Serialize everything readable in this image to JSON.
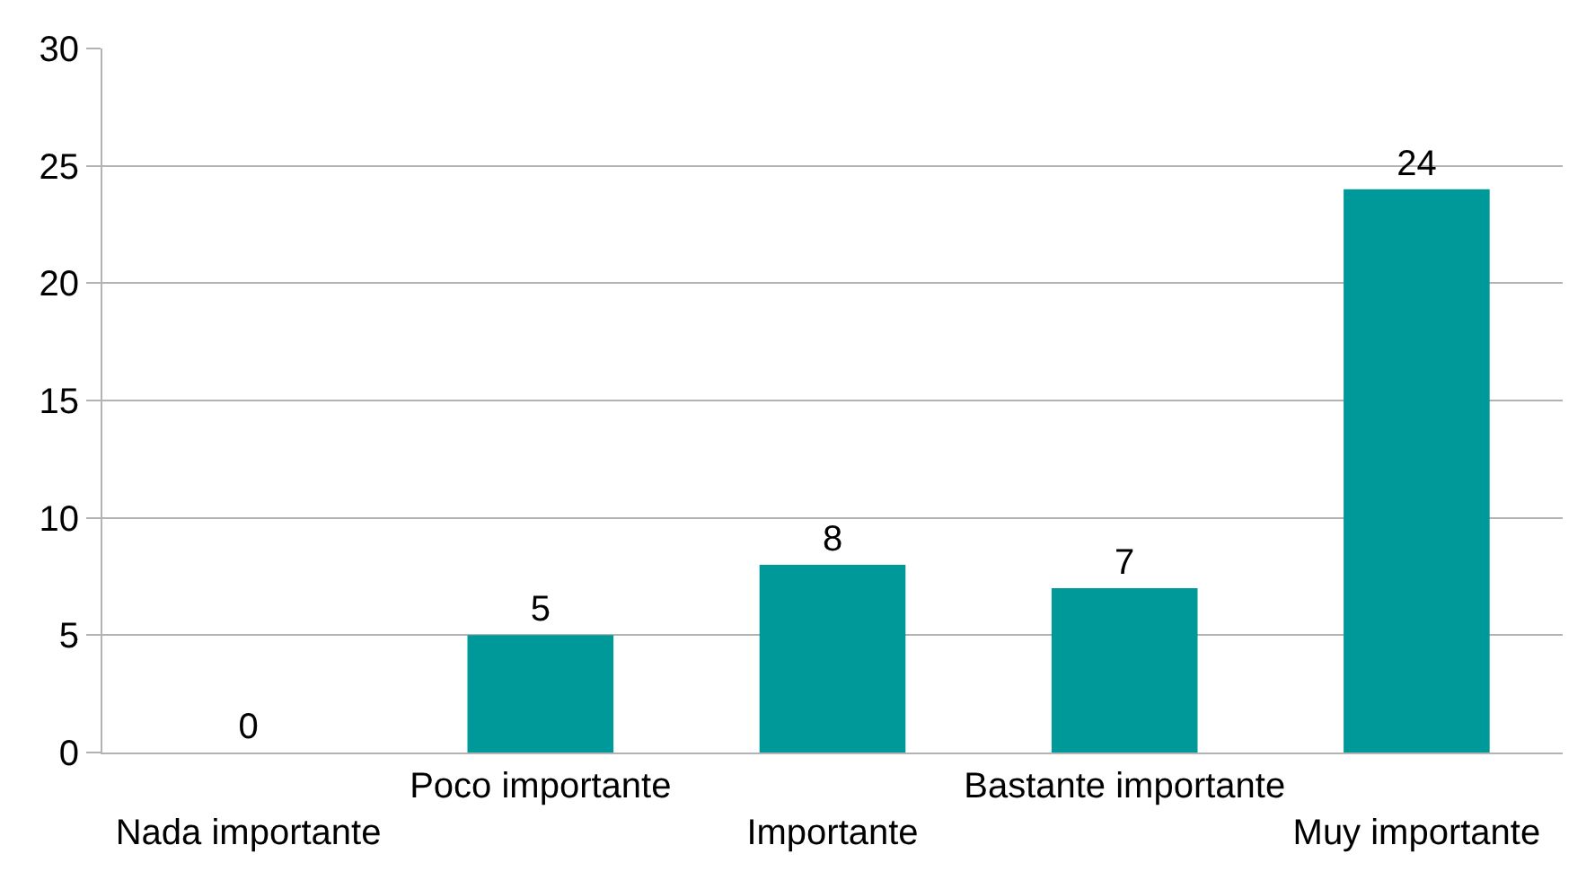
{
  "chart_data": {
    "type": "bar",
    "categories": [
      "Nada importante",
      "Poco importante",
      "Importante",
      "Bastante importante",
      "Muy importante"
    ],
    "values": [
      0,
      5,
      8,
      7,
      24
    ],
    "color": "#009999",
    "ylim": [
      0,
      30
    ],
    "yticks": [
      0,
      5,
      10,
      15,
      20,
      25,
      30
    ],
    "grid": "y",
    "data_labels": true,
    "legend": false
  }
}
